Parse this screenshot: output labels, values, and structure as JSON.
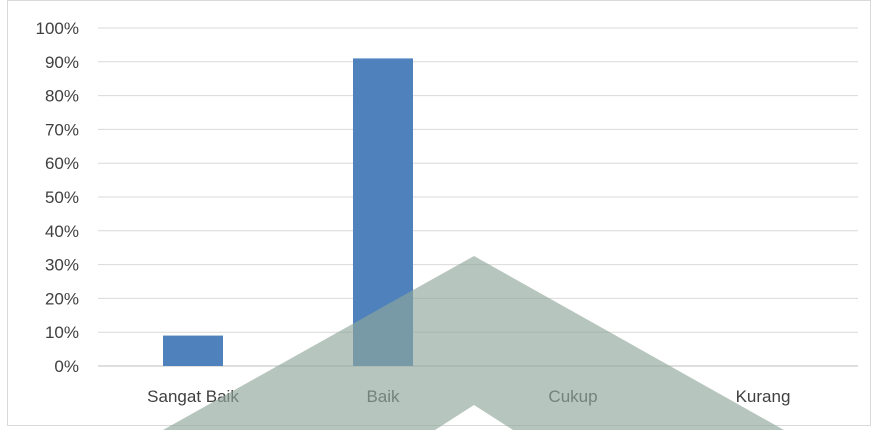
{
  "chart_data": {
    "type": "bar",
    "categories": [
      "Sangat Baik",
      "Baik",
      "Cukup",
      "Kurang"
    ],
    "values": [
      9,
      91,
      0,
      0
    ],
    "ylim": [
      0,
      100
    ],
    "ytick_step": 10,
    "ytick_suffix": "%",
    "grid": true,
    "legend": "none",
    "bar_color": "#4f81bd",
    "overlay_color": "#8fa69a"
  }
}
